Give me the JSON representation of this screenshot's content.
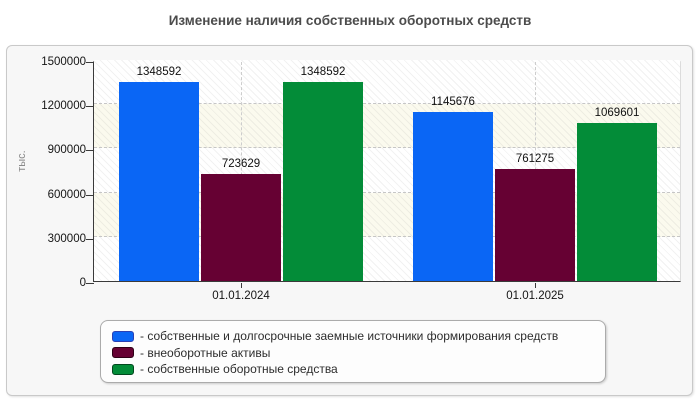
{
  "title": "Изменение наличия собственных оборотных средств",
  "chart_data": {
    "type": "bar",
    "title": "Изменение наличия собственных оборотных средств",
    "xlabel": "",
    "ylabel": "тыс.",
    "ylim": [
      0,
      1500000
    ],
    "yticks": [
      0,
      300000,
      600000,
      900000,
      1200000,
      1500000
    ],
    "grid": "dashed",
    "legend_position": "bottom",
    "categories": [
      "01.01.2024",
      "01.01.2025"
    ],
    "series": [
      {
        "name": "собственные и долгосрочные заемные источники формирования средств",
        "color": "#0a66f5",
        "border_color": "#2a41b4",
        "values": [
          1348592,
          1145676
        ]
      },
      {
        "name": "внеоборотные активы",
        "color": "#660133",
        "border_color": "#2e0016",
        "values": [
          723629,
          761275
        ]
      },
      {
        "name": "собственные оборотные средства",
        "color": "#038c38",
        "border_color": "#02481e",
        "values": [
          1348592,
          1069601
        ]
      }
    ]
  },
  "legend": {
    "items": [
      {
        "label": "- собственные и долгосрочные заемные источники формирования средств"
      },
      {
        "label": "- внеоборотные активы"
      },
      {
        "label": "- собственные оборотные средства"
      }
    ]
  }
}
